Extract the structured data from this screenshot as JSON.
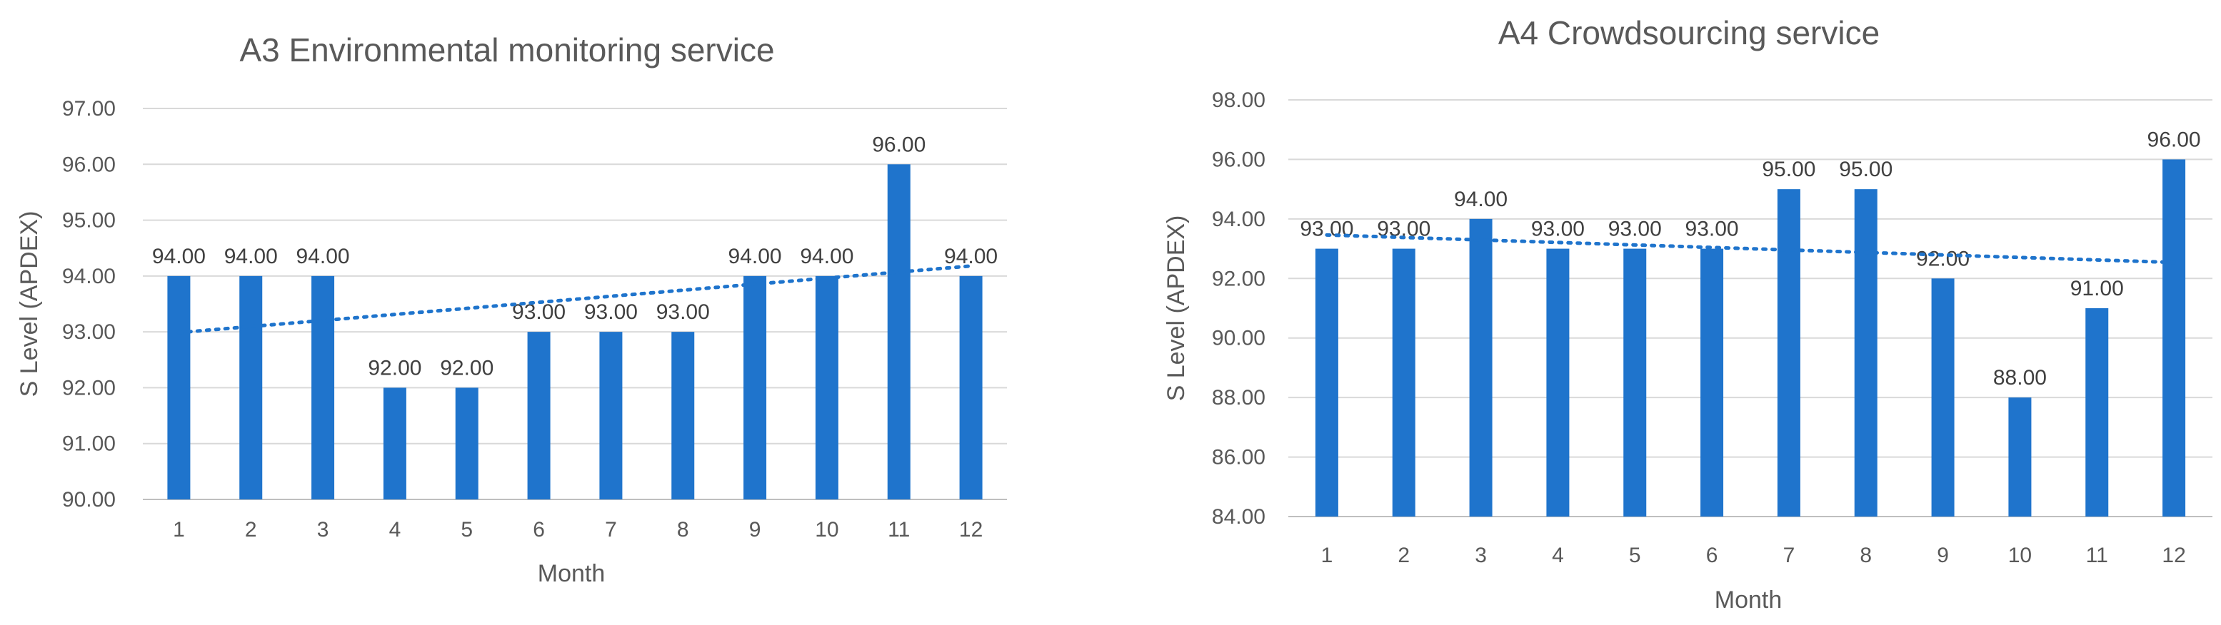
{
  "chart_data": [
    {
      "type": "bar",
      "title": "A3 Environmental monitoring service",
      "xlabel": "Month",
      "ylabel": "S Level (APDEX)",
      "categories": [
        "1",
        "2",
        "3",
        "4",
        "5",
        "6",
        "7",
        "8",
        "9",
        "10",
        "11",
        "12"
      ],
      "values": [
        94,
        94,
        94,
        92,
        92,
        93,
        93,
        93,
        94,
        94,
        96,
        94
      ],
      "data_labels": [
        "94.00",
        "94.00",
        "94.00",
        "92.00",
        "92.00",
        "93.00",
        "93.00",
        "93.00",
        "94.00",
        "94.00",
        "96.00",
        "94.00"
      ],
      "yticks": [
        "90.00",
        "91.00",
        "92.00",
        "93.00",
        "94.00",
        "95.00",
        "96.00",
        "97.00"
      ],
      "ylim": [
        90,
        97
      ],
      "trendline": "linear",
      "grid": true,
      "bar_color": "#1f74cc",
      "trend_color": "#1f74cc"
    },
    {
      "type": "bar",
      "title": "A4 Crowdsourcing service",
      "xlabel": "Month",
      "ylabel": "S Level (APDEX)",
      "categories": [
        "1",
        "2",
        "3",
        "4",
        "5",
        "6",
        "7",
        "8",
        "9",
        "10",
        "11",
        "12"
      ],
      "values": [
        93,
        93,
        94,
        93,
        93,
        93,
        95,
        95,
        92,
        88,
        91,
        96
      ],
      "data_labels": [
        "93.00",
        "93.00",
        "94.00",
        "93.00",
        "93.00",
        "93.00",
        "95.00",
        "95.00",
        "92.00",
        "88.00",
        "91.00",
        "96.00"
      ],
      "yticks": [
        "84.00",
        "86.00",
        "88.00",
        "90.00",
        "92.00",
        "94.00",
        "96.00",
        "98.00"
      ],
      "ylim": [
        84,
        98
      ],
      "trendline": "linear",
      "grid": true,
      "bar_color": "#1f74cc",
      "trend_color": "#1f74cc"
    }
  ]
}
